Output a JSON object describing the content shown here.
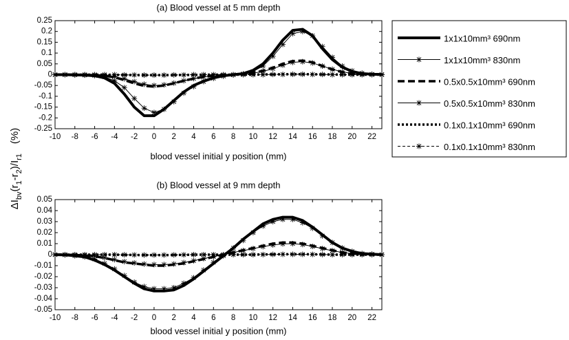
{
  "y_label_parts": [
    {
      "text": "ΔI",
      "sub": false
    },
    {
      "text": "bv",
      "sub": true
    },
    {
      "text": "(",
      "sub": false
    },
    {
      "text": "r",
      "sub": false
    },
    {
      "text": "1",
      "sub": true
    },
    {
      "text": "-r",
      "sub": false
    },
    {
      "text": "2",
      "sub": true
    },
    {
      "text": ")/I",
      "sub": false
    },
    {
      "text": "r1",
      "sub": true
    },
    {
      "text": "(%)",
      "sub": false
    }
  ],
  "chart_data": [
    {
      "type": "line",
      "title": "(a) Blood vessel at 5 mm depth",
      "x_label": "blood vessel  initial y position (mm)",
      "x": [
        -10,
        -9,
        -8,
        -7,
        -6,
        -5,
        -4,
        -3,
        -2,
        -1,
        0,
        1,
        2,
        3,
        4,
        5,
        6,
        7,
        8,
        9,
        10,
        11,
        12,
        13,
        14,
        15,
        16,
        17,
        18,
        19,
        20,
        21,
        22,
        23
      ],
      "xlim": [
        -10,
        23
      ],
      "xticks": [
        -10,
        -8,
        -6,
        -4,
        -2,
        0,
        2,
        4,
        6,
        8,
        10,
        12,
        14,
        16,
        18,
        20,
        22
      ],
      "ylim": [
        -0.25,
        0.25
      ],
      "yticks": [
        0.25,
        0.2,
        0.15,
        0.1,
        0.05,
        0,
        -0.05,
        -0.1,
        -0.15,
        -0.2,
        -0.25
      ],
      "grid": false,
      "series": [
        {
          "name": "1x1x10mm³ 690nm",
          "color": "#000000",
          "line_width": 4,
          "dash": "none",
          "marker": "none",
          "values": [
            0,
            0,
            -0.001,
            -0.002,
            -0.005,
            -0.015,
            -0.04,
            -0.09,
            -0.15,
            -0.19,
            -0.19,
            -0.16,
            -0.12,
            -0.08,
            -0.05,
            -0.03,
            -0.015,
            -0.005,
            0,
            0.005,
            0.02,
            0.05,
            0.1,
            0.16,
            0.205,
            0.21,
            0.18,
            0.12,
            0.07,
            0.035,
            0.015,
            0.005,
            0.002,
            0.001
          ]
        },
        {
          "name": "1x1x10mm³ 830nm",
          "color": "#000000",
          "line_width": 1,
          "dash": "none",
          "marker": "star",
          "values": [
            0,
            0,
            -0.001,
            -0.002,
            -0.004,
            -0.01,
            -0.028,
            -0.06,
            -0.11,
            -0.155,
            -0.175,
            -0.16,
            -0.125,
            -0.085,
            -0.055,
            -0.032,
            -0.017,
            -0.007,
            -0.001,
            0.004,
            0.015,
            0.04,
            0.085,
            0.14,
            0.19,
            0.2,
            0.18,
            0.13,
            0.08,
            0.04,
            0.018,
            0.007,
            0.002,
            0.001
          ]
        },
        {
          "name": "0.5x0.5x10mm³ 690nm",
          "color": "#000000",
          "line_width": 3.5,
          "dash": "10,5",
          "marker": "none",
          "values": [
            0,
            0,
            0,
            -0.001,
            -0.002,
            -0.005,
            -0.012,
            -0.025,
            -0.04,
            -0.052,
            -0.055,
            -0.05,
            -0.04,
            -0.028,
            -0.018,
            -0.01,
            -0.005,
            -0.002,
            0,
            0.003,
            0.008,
            0.018,
            0.032,
            0.05,
            0.063,
            0.065,
            0.057,
            0.04,
            0.024,
            0.012,
            0.005,
            0.002,
            0.001,
            0
          ]
        },
        {
          "name": "0.5x0.5x10mm³ 830nm",
          "color": "#000000",
          "line_width": 1,
          "dash": "none",
          "marker": "star",
          "values": [
            0,
            0,
            0,
            -0.001,
            -0.002,
            -0.004,
            -0.009,
            -0.019,
            -0.032,
            -0.044,
            -0.05,
            -0.047,
            -0.039,
            -0.028,
            -0.018,
            -0.01,
            -0.005,
            -0.002,
            0,
            0.002,
            0.007,
            0.015,
            0.028,
            0.044,
            0.057,
            0.06,
            0.054,
            0.04,
            0.025,
            0.013,
            0.006,
            0.002,
            0.001,
            0
          ]
        },
        {
          "name": "0.1x0.1x10mm³ 690nm",
          "color": "#000000",
          "line_width": 3.5,
          "dash": "3,3",
          "marker": "none",
          "values": [
            0,
            0,
            0,
            0,
            0,
            0,
            -0.001,
            -0.001,
            -0.002,
            -0.002,
            -0.002,
            -0.002,
            -0.002,
            -0.001,
            -0.001,
            0,
            0,
            0,
            0,
            0,
            0,
            0.001,
            0.001,
            0.002,
            0.002,
            0.002,
            0.002,
            0.001,
            0.001,
            0,
            0,
            0,
            0,
            0
          ]
        },
        {
          "name": "0.1x0.1x10mm³ 830nm",
          "color": "#000000",
          "line_width": 1,
          "dash": "4,3",
          "marker": "star",
          "values": [
            0,
            0,
            0,
            0,
            0,
            0,
            0,
            -0.001,
            -0.001,
            -0.002,
            -0.002,
            -0.002,
            -0.001,
            -0.001,
            0,
            0,
            0,
            0,
            0,
            0,
            0,
            0,
            0.001,
            0.001,
            0.002,
            0.002,
            0.001,
            0.001,
            0,
            0,
            0,
            0,
            0,
            0
          ]
        }
      ]
    },
    {
      "type": "line",
      "title": "(b) Blood vessel at 9 mm depth",
      "x_label": "blood vessel  initial y position (mm)",
      "x": [
        -10,
        -9,
        -8,
        -7,
        -6,
        -5,
        -4,
        -3,
        -2,
        -1,
        0,
        1,
        2,
        3,
        4,
        5,
        6,
        7,
        8,
        9,
        10,
        11,
        12,
        13,
        14,
        15,
        16,
        17,
        18,
        19,
        20,
        21,
        22,
        23
      ],
      "xlim": [
        -10,
        23
      ],
      "xticks": [
        -10,
        -8,
        -6,
        -4,
        -2,
        0,
        2,
        4,
        6,
        8,
        10,
        12,
        14,
        16,
        18,
        20,
        22
      ],
      "ylim": [
        -0.05,
        0.05
      ],
      "yticks": [
        0.05,
        0.04,
        0.03,
        0.02,
        0.01,
        0,
        -0.01,
        -0.02,
        -0.03,
        -0.04,
        -0.05
      ],
      "grid": false,
      "series": [
        {
          "color": "#000000",
          "line_width": 4,
          "dash": "none",
          "marker": "none",
          "values": [
            0,
            -0.0002,
            -0.001,
            -0.002,
            -0.005,
            -0.009,
            -0.014,
            -0.02,
            -0.026,
            -0.031,
            -0.033,
            -0.033,
            -0.032,
            -0.028,
            -0.022,
            -0.015,
            -0.008,
            -0.001,
            0.006,
            0.014,
            0.021,
            0.028,
            0.032,
            0.034,
            0.034,
            0.031,
            0.025,
            0.018,
            0.011,
            0.006,
            0.003,
            0.001,
            0.0005,
            0
          ]
        },
        {
          "color": "#000000",
          "line_width": 1,
          "dash": "none",
          "marker": "star",
          "values": [
            0,
            -0.0002,
            -0.001,
            -0.002,
            -0.004,
            -0.008,
            -0.013,
            -0.019,
            -0.025,
            -0.029,
            -0.031,
            -0.031,
            -0.03,
            -0.026,
            -0.021,
            -0.014,
            -0.007,
            -0.001,
            0.006,
            0.013,
            0.02,
            0.026,
            0.03,
            0.032,
            0.032,
            0.029,
            0.024,
            0.017,
            0.011,
            0.006,
            0.003,
            0.001,
            0.0005,
            0
          ]
        },
        {
          "color": "#000000",
          "line_width": 3.5,
          "dash": "10,5",
          "marker": "none",
          "values": [
            0,
            0,
            -0.0003,
            -0.0007,
            -0.0015,
            -0.003,
            -0.005,
            -0.007,
            -0.008,
            -0.009,
            -0.01,
            -0.01,
            -0.009,
            -0.008,
            -0.006,
            -0.004,
            -0.002,
            0,
            0.002,
            0.004,
            0.006,
            0.008,
            0.01,
            0.011,
            0.011,
            0.01,
            0.008,
            0.006,
            0.004,
            0.002,
            0.001,
            0.0005,
            0.0002,
            0
          ]
        },
        {
          "color": "#000000",
          "line_width": 1,
          "dash": "none",
          "marker": "star",
          "values": [
            0,
            0,
            -0.0003,
            -0.0006,
            -0.0013,
            -0.0027,
            -0.0045,
            -0.0063,
            -0.0075,
            -0.0085,
            -0.009,
            -0.009,
            -0.0085,
            -0.0072,
            -0.0055,
            -0.0036,
            -0.0018,
            0,
            0.002,
            0.0037,
            0.0055,
            0.0073,
            0.0088,
            0.0098,
            0.01,
            0.0092,
            0.0075,
            0.0055,
            0.0036,
            0.002,
            0.001,
            0.0005,
            0.0002,
            0
          ]
        },
        {
          "color": "#000000",
          "line_width": 3.5,
          "dash": "3,3",
          "marker": "none",
          "values": [
            0,
            0,
            0,
            0,
            0,
            0,
            0,
            -0.0002,
            -0.0003,
            -0.0004,
            -0.0004,
            -0.0004,
            -0.0003,
            -0.0002,
            0,
            0,
            0,
            0,
            0,
            0,
            0,
            0.0002,
            0.0003,
            0.0004,
            0.0004,
            0.0004,
            0.0003,
            0.0002,
            0,
            0,
            0,
            0,
            0,
            0
          ]
        },
        {
          "color": "#000000",
          "line_width": 1,
          "dash": "4,3",
          "marker": "star",
          "values": [
            0,
            0,
            0,
            0,
            0,
            0,
            0,
            -0.0001,
            -0.0002,
            -0.0003,
            -0.0003,
            -0.0003,
            -0.0002,
            -0.0001,
            0,
            0,
            0,
            0,
            0,
            0,
            0,
            0.0001,
            0.0002,
            0.0003,
            0.0003,
            0.0003,
            0.0002,
            0.0001,
            0,
            0,
            0,
            0,
            0,
            0
          ]
        }
      ]
    }
  ]
}
